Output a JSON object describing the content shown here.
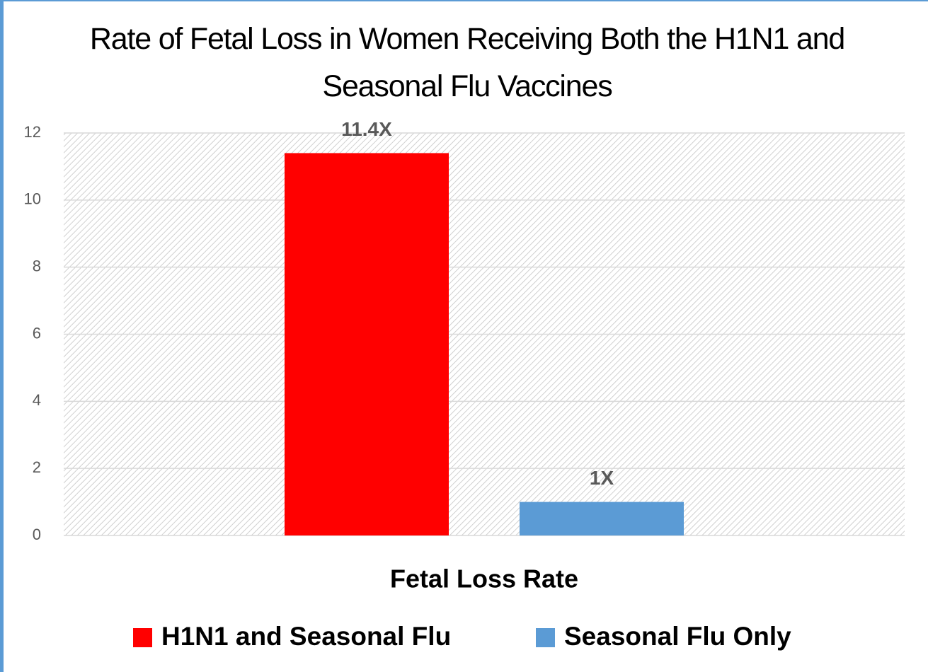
{
  "chart_data": {
    "type": "bar",
    "title": "Rate of Fetal Loss in Women Receiving Both the H1N1 and Seasonal Flu Vaccines",
    "categories": [
      "Fetal Loss Rate"
    ],
    "series": [
      {
        "name": "H1N1 and Seasonal Flu",
        "color": "#ff0000",
        "values": [
          11.4
        ],
        "value_labels": [
          "11.4X"
        ]
      },
      {
        "name": "Seasonal Flu Only",
        "color": "#5b9bd5",
        "values": [
          1
        ],
        "value_labels": [
          "1X"
        ]
      }
    ],
    "ylim": [
      0,
      12
    ],
    "yticks": [
      0,
      2,
      4,
      6,
      8,
      10,
      12
    ],
    "grid": true,
    "legend": "bottom"
  }
}
